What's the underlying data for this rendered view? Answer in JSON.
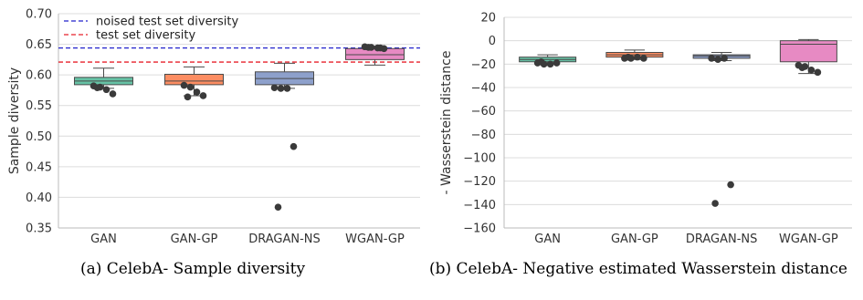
{
  "chart_data": [
    {
      "type": "box",
      "ylabel": "Sample diversity",
      "ylim": [
        0.35,
        0.7
      ],
      "yticks": [
        "0.35",
        "0.40",
        "0.45",
        "0.50",
        "0.55",
        "0.60",
        "0.65",
        "0.70"
      ],
      "categories": [
        "GAN",
        "GAN-GP",
        "DRAGAN-NS",
        "WGAN-GP"
      ],
      "grid": "horizontal",
      "legend_position": "top-left",
      "reference_lines": [
        {
          "label": "noised test set diversity",
          "y": 0.644,
          "color": "#2222cc"
        },
        {
          "label": "test set diversity",
          "y": 0.621,
          "color": "#e8212b"
        }
      ],
      "boxes": [
        {
          "whisker_low": 0.578,
          "q1": 0.584,
          "median": 0.59,
          "q3": 0.596,
          "whisker_high": 0.611,
          "color": "#66c2a5"
        },
        {
          "whisker_low": 0.566,
          "q1": 0.584,
          "median": 0.59,
          "q3": 0.601,
          "whisker_high": 0.613,
          "color": "#fc8d62"
        },
        {
          "whisker_low": 0.578,
          "q1": 0.584,
          "median": 0.594,
          "q3": 0.605,
          "whisker_high": 0.619,
          "color": "#8da0cb"
        },
        {
          "whisker_low": 0.616,
          "q1": 0.625,
          "median": 0.633,
          "q3": 0.643,
          "whisker_high": 0.647,
          "color": "#e78ac3"
        }
      ],
      "points": [
        [
          0.582,
          0.58,
          0.576,
          0.569,
          0.579
        ],
        [
          0.583,
          0.58,
          0.572,
          0.566,
          0.564
        ],
        [
          0.579,
          0.578,
          0.578,
          0.483,
          0.384
        ],
        [
          0.646,
          0.645,
          0.644,
          0.643,
          0.645,
          0.644
        ]
      ]
    },
    {
      "type": "box",
      "ylabel": "- Wasserstein distance",
      "ylim": [
        -160,
        20
      ],
      "yticks": [
        "−160",
        "−140",
        "−120",
        "−100",
        "−80",
        "−60",
        "−40",
        "−20",
        "0",
        "20"
      ],
      "categories": [
        "GAN",
        "GAN-GP",
        "DRAGAN-NS",
        "WGAN-GP"
      ],
      "grid": "horizontal",
      "boxes": [
        {
          "whisker_low": -20,
          "q1": -18,
          "median": -16,
          "q3": -14,
          "whisker_high": -12,
          "color": "#66c2a5"
        },
        {
          "whisker_low": -16,
          "q1": -14,
          "median": -12,
          "q3": -10,
          "whisker_high": -8,
          "color": "#fc8d62"
        },
        {
          "whisker_low": -17,
          "q1": -15,
          "median": -13,
          "q3": -12,
          "whisker_high": -10,
          "color": "#8da0cb"
        },
        {
          "whisker_low": -28,
          "q1": -18,
          "median": -3,
          "q3": 0,
          "whisker_high": 1,
          "color": "#e78ac3"
        }
      ],
      "points": [
        [
          -19,
          -20,
          -20,
          -19,
          -18
        ],
        [
          -15,
          -15,
          -14,
          -15,
          -14
        ],
        [
          -15,
          -16,
          -15,
          -123,
          -139
        ],
        [
          -21,
          -22,
          -25,
          -27,
          -23
        ]
      ]
    }
  ],
  "captions": {
    "a": "(a) CelebA- Sample diversity",
    "b": "(b) CelebA- Negative estimated Wasserstein distance"
  }
}
